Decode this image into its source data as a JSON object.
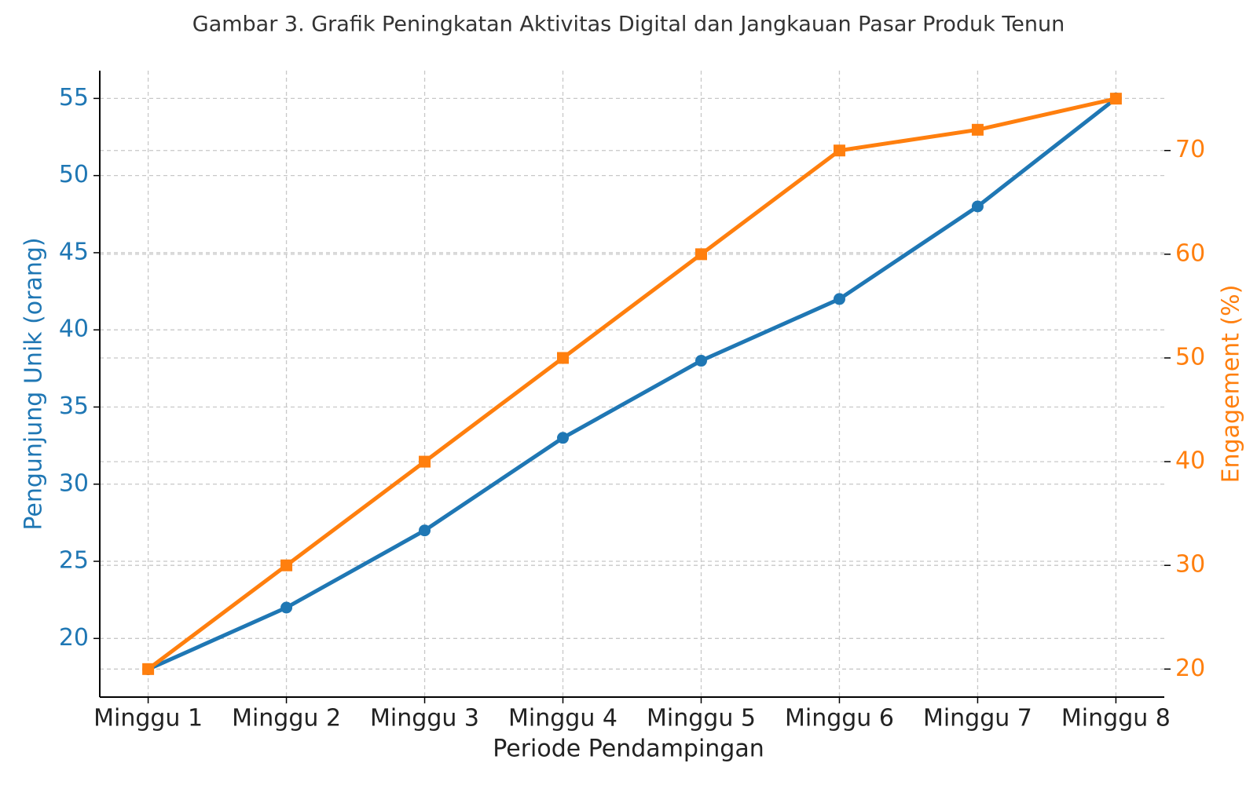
{
  "chart_data": {
    "type": "line",
    "title": "Gambar 3. Grafik Peningkatan Aktivitas Digital dan Jangkauan Pasar Produk Tenun",
    "x_label": "Periode Pendampingan",
    "y_label": "Pengunjung Unik (orang)",
    "y2_label": "Engagement (%)",
    "categories": [
      "Minggu 1",
      "Minggu 2",
      "Minggu 3",
      "Minggu 4",
      "Minggu 5",
      "Minggu 6",
      "Minggu 7",
      "Minggu 8"
    ],
    "series": [
      {
        "name": "Pengunjung Unik (orang)",
        "color": "#1f77b4",
        "marker": "circle",
        "values": [
          18,
          22,
          27,
          33,
          38,
          42,
          48,
          55
        ]
      },
      {
        "name": "Engagement (%)",
        "color": "#ff7f0e",
        "marker": "square",
        "axis": "y2",
        "values": [
          20,
          30,
          40,
          50,
          60,
          70,
          72,
          75
        ]
      }
    ],
    "ylim": [
      16.2,
      56.8
    ],
    "yticks": [
      20,
      25,
      30,
      35,
      40,
      45,
      50,
      55
    ],
    "y2lim": [
      17.3,
      77.7
    ],
    "y2ticks": [
      20,
      30,
      40,
      50,
      60,
      70
    ],
    "grid": true
  }
}
